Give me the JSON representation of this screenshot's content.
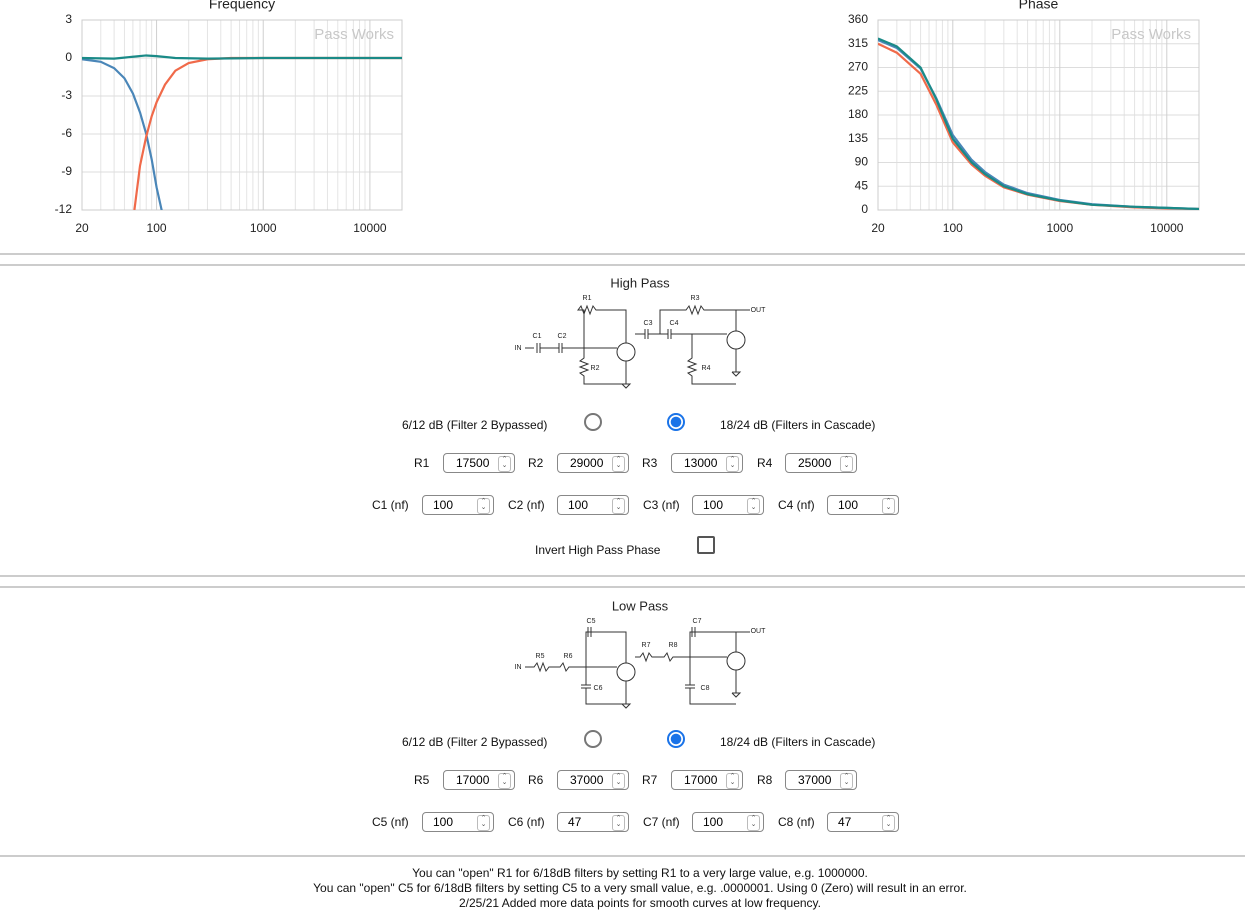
{
  "chart_data": [
    {
      "type": "line",
      "title": "Frequency",
      "watermark": "Pass Works",
      "xscale": "log",
      "xlim": [
        20,
        20000
      ],
      "xticks": [
        20,
        100,
        1000,
        10000
      ],
      "ylim": [
        -12,
        3
      ],
      "yticks": [
        3,
        0,
        -3,
        -6,
        -9,
        -12
      ],
      "grid": true,
      "series": [
        {
          "color": "#4a86b8",
          "x": [
            20,
            30,
            40,
            50,
            60,
            70,
            80,
            90,
            100,
            115
          ],
          "values": [
            -0.1,
            -0.3,
            -0.8,
            -1.6,
            -2.8,
            -4.3,
            -6,
            -8,
            -10.2,
            -12.5
          ]
        },
        {
          "color": "#f06a4a",
          "x": [
            62,
            70,
            80,
            90,
            100,
            120,
            150,
            200,
            300,
            500,
            1000,
            20000
          ],
          "values": [
            -12,
            -8.5,
            -6.2,
            -4.6,
            -3.5,
            -2.1,
            -1,
            -0.4,
            -0.1,
            0,
            0,
            0
          ]
        },
        {
          "color": "#1a8a87",
          "x": [
            20,
            40,
            60,
            80,
            100,
            150,
            300,
            1000,
            20000
          ],
          "values": [
            0,
            -0.05,
            0.1,
            0.2,
            0.15,
            0,
            -0.05,
            0,
            0
          ]
        }
      ]
    },
    {
      "type": "line",
      "title": "Phase",
      "watermark": "Pass Works",
      "xscale": "log",
      "xlim": [
        20,
        20000
      ],
      "xticks": [
        20,
        100,
        1000,
        10000
      ],
      "ylim": [
        0,
        360
      ],
      "yticks": [
        360,
        315,
        270,
        225,
        180,
        135,
        90,
        45,
        0
      ],
      "grid": true,
      "series": [
        {
          "color": "#f06a4a",
          "x": [
            20,
            30,
            50,
            70,
            100,
            150,
            200,
            300,
            500,
            1000,
            2000,
            5000,
            10000,
            20000
          ],
          "values": [
            315,
            298,
            258,
            200,
            128,
            86,
            65,
            43,
            29,
            17,
            10,
            5,
            3,
            2
          ]
        },
        {
          "color": "#4a86b8",
          "x": [
            20,
            30,
            50,
            70,
            100,
            150,
            200,
            300,
            500,
            1000,
            2000,
            5000,
            10000,
            20000
          ],
          "values": [
            322,
            307,
            268,
            212,
            142,
            95,
            72,
            48,
            32,
            19,
            11,
            6,
            4,
            2
          ]
        },
        {
          "color": "#1a8a87",
          "x": [
            20,
            30,
            50,
            70,
            100,
            150,
            200,
            300,
            500,
            1000,
            2000,
            5000,
            10000,
            20000
          ],
          "values": [
            325,
            310,
            270,
            210,
            135,
            90,
            68,
            45,
            30,
            18,
            10,
            6,
            4,
            2
          ]
        }
      ]
    }
  ],
  "high_pass": {
    "title": "High Pass",
    "schematic": [
      "IN",
      "C1",
      "C2",
      "R1",
      "R2",
      "C3",
      "C4",
      "R3",
      "R4",
      "OUT"
    ],
    "options": [
      "6/12 dB (Filter 2 Bypassed)",
      "18/24 dB (Filters in Cascade)"
    ],
    "selected": 1,
    "resistors": [
      {
        "label": "R1",
        "value": 17500
      },
      {
        "label": "R2",
        "value": 29000
      },
      {
        "label": "R3",
        "value": 13000
      },
      {
        "label": "R4",
        "value": 25000
      }
    ],
    "capacitors": [
      {
        "label": "C1 (nf)",
        "value": 100
      },
      {
        "label": "C2 (nf)",
        "value": 100
      },
      {
        "label": "C3 (nf)",
        "value": 100
      },
      {
        "label": "C4 (nf)",
        "value": 100
      }
    ],
    "invert": {
      "label": "Invert High Pass Phase",
      "checked": false
    }
  },
  "low_pass": {
    "title": "Low Pass",
    "schematic": [
      "IN",
      "R5",
      "R6",
      "C5",
      "C6",
      "R7",
      "R8",
      "C7",
      "C8",
      "OUT"
    ],
    "options": [
      "6/12 dB (Filter 2 Bypassed)",
      "18/24 dB (Filters in Cascade)"
    ],
    "selected": 1,
    "resistors": [
      {
        "label": "R5",
        "value": 17000
      },
      {
        "label": "R6",
        "value": 37000
      },
      {
        "label": "R7",
        "value": 17000
      },
      {
        "label": "R8",
        "value": 37000
      }
    ],
    "capacitors": [
      {
        "label": "C5 (nf)",
        "value": 100
      },
      {
        "label": "C6 (nf)",
        "value": 47
      },
      {
        "label": "C7 (nf)",
        "value": 100
      },
      {
        "label": "C8 (nf)",
        "value": 47
      }
    ]
  },
  "notes": [
    "You can \"open\" R1 for 6/18dB filters by setting R1 to a very large value, e.g. 1000000.",
    "You can \"open\" C5 for 6/18dB filters by setting C5 to a very small value, e.g. .0000001. Using 0 (Zero) will result in an error.",
    "2/25/21 Added more data points for smooth curves at low frequency."
  ]
}
